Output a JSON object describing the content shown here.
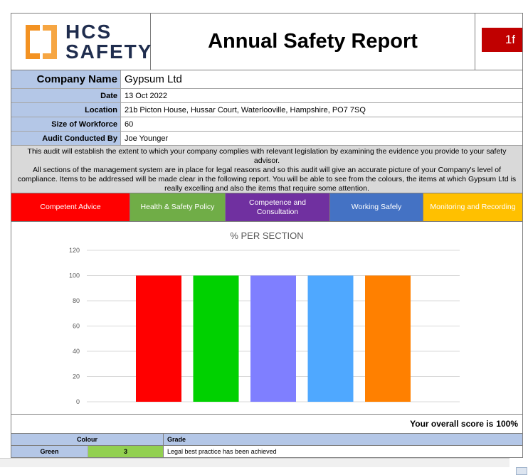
{
  "header": {
    "logo_line1": "HCS",
    "logo_line2": "SAFETY",
    "title": "Annual Safety Report",
    "badge": "1f"
  },
  "info": {
    "company_label": "Company Name",
    "company_value": "Gypsum Ltd",
    "date_label": "Date",
    "date_value": "13 Oct 2022",
    "location_label": "Location",
    "location_value": "21b Picton House, Hussar Court, Waterlooville, Hampshire, PO7 7SQ",
    "workforce_label": "Size of Workforce",
    "workforce_value": "60",
    "auditor_label": "Audit Conducted By",
    "auditor_value": "Joe Younger"
  },
  "intro": {
    "line1": "This audit will establish the extent to which your company complies with relevant legislation by examining the evidence you provide to your safety advisor.",
    "line2": "All sections of the management system are in place for legal reasons and so this audit will give an accurate picture of your Company's level of compliance. Items to be addressed will be made clear in the following report.  You will be able to see from the colours, the items at which Gypsum Ltd is really excelling and also the items that require some attention."
  },
  "sections": [
    {
      "label": "Competent Advice",
      "color": "#ff0000"
    },
    {
      "label": "Health & Safety Policy",
      "color": "#70ad47"
    },
    {
      "label": "Competence and Consultation",
      "color": "#7030a0"
    },
    {
      "label": "Working Safely",
      "color": "#4472c4"
    },
    {
      "label": "Monitoring and Recording",
      "color": "#ffc000"
    }
  ],
  "chart_data": {
    "type": "bar",
    "title": "% PER SECTION",
    "categories": [
      "Competent Advice",
      "Health & Safety Policy",
      "Competence and Consultation",
      "Working Safely",
      "Monitoring and Recording"
    ],
    "values": [
      100,
      100,
      100,
      100,
      100
    ],
    "colors": [
      "#ff0000",
      "#00d100",
      "#7f7fff",
      "#4fa8ff",
      "#ff8000"
    ],
    "ylim": [
      0,
      120
    ],
    "yticks": [
      "0",
      "20",
      "40",
      "60",
      "80",
      "100",
      "120"
    ],
    "grid": true,
    "xlabel": "",
    "ylabel": ""
  },
  "score": {
    "label": "Your overall score is",
    "value": "100%"
  },
  "grades": {
    "colour_header": "Colour",
    "grade_header": "Grade",
    "rows": [
      {
        "colour": "Green",
        "count": "3",
        "grade": "Legal best practice has been achieved"
      }
    ]
  }
}
